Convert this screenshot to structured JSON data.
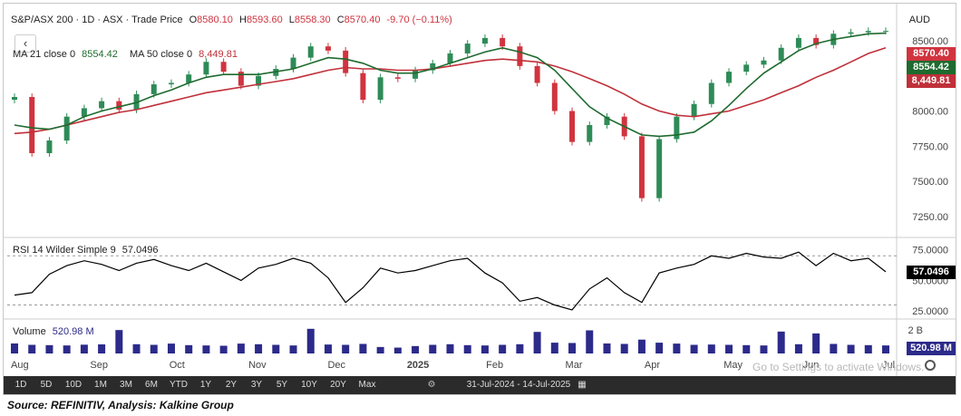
{
  "header": {
    "symbol": "S&P/ASX 200 · 1D · ASX · Trade Price",
    "o_label": "O",
    "o_value": "8580.10",
    "h_label": "H",
    "h_value": "8593.60",
    "l_label": "L",
    "l_value": "8558.30",
    "c_label": "C",
    "c_value": "8570.40",
    "change": "-9.70 (−0.11%)",
    "currency": "AUD",
    "back_icon": "chevron-left-icon"
  },
  "ma_legend": {
    "ma21_label": "MA 21 close 0",
    "ma21_value": "8554.42",
    "ma50_label": "MA 50 close 0",
    "ma50_value": "8,449.81"
  },
  "rsi_legend": {
    "label": "RSI 14 Wilder Simple 9",
    "value": "57.0496"
  },
  "volume_legend": {
    "label": "Volume",
    "value": "520.98 M"
  },
  "price_tags": {
    "close": "8570.40",
    "ma21": "8554.42",
    "ma50": "8,449.81"
  },
  "rsi_tag": "57.0496",
  "volume_tag": "520.98 M",
  "volume_axis_label": "2 B",
  "toolbar": {
    "ranges": [
      "1D",
      "5D",
      "10D",
      "1M",
      "3M",
      "6M",
      "YTD",
      "1Y",
      "2Y",
      "3Y",
      "5Y",
      "10Y",
      "20Y",
      "Max"
    ],
    "date_range": "31-Jul-2024 - 14-Jul-2025",
    "calendar_icon": "calendar-icon",
    "settings_icon": "gear-icon"
  },
  "watermark": "Go to Settings to activate Windows.",
  "source": "Source: REFINITIV, Analysis: Kalkine Group",
  "colors": {
    "up": "#2e8b57",
    "down": "#d0343f",
    "ma21": "#1e6b2f",
    "ma50": "#c0303a",
    "rsi": "#000000",
    "volume": "#2c2a8a",
    "toolbar": "#2b2b2b"
  },
  "chart_data": [
    {
      "type": "line",
      "title": "S&P/ASX 200",
      "x_ticks": [
        "Aug",
        "Sep",
        "Oct",
        "Nov",
        "Dec",
        "2025",
        "Feb",
        "Mar",
        "Apr",
        "May",
        "Jun",
        "Jul"
      ],
      "y_ticks": [
        7250,
        7500,
        7750,
        8000,
        8250,
        8500
      ],
      "y_tick_labels": [
        "7250.00",
        "7500.00",
        "7750.00",
        "8000.00",
        "8250.00",
        "8500.00"
      ],
      "ylim": [
        7100,
        8700
      ],
      "x_dates": [
        "2024-07-31",
        "2024-08-05",
        "2024-08-12",
        "2024-08-19",
        "2024-08-26",
        "2024-09-02",
        "2024-09-09",
        "2024-09-16",
        "2024-09-23",
        "2024-09-30",
        "2024-10-07",
        "2024-10-14",
        "2024-10-21",
        "2024-10-28",
        "2024-11-04",
        "2024-11-11",
        "2024-11-18",
        "2024-11-25",
        "2024-12-02",
        "2024-12-09",
        "2024-12-16",
        "2024-12-23",
        "2024-12-30",
        "2025-01-06",
        "2025-01-13",
        "2025-01-20",
        "2025-01-27",
        "2025-02-03",
        "2025-02-10",
        "2025-02-17",
        "2025-02-24",
        "2025-03-03",
        "2025-03-10",
        "2025-03-17",
        "2025-03-24",
        "2025-03-31",
        "2025-04-07",
        "2025-04-14",
        "2025-04-21",
        "2025-04-28",
        "2025-05-05",
        "2025-05-12",
        "2025-05-19",
        "2025-05-26",
        "2025-06-02",
        "2025-06-09",
        "2025-06-16",
        "2025-06-23",
        "2025-06-30",
        "2025-07-07",
        "2025-07-14"
      ],
      "series": [
        {
          "name": "Price",
          "values": [
            8100,
            7700,
            7790,
            7960,
            8020,
            8070,
            8010,
            8120,
            8190,
            8200,
            8260,
            8350,
            8280,
            8180,
            8250,
            8300,
            8380,
            8460,
            8430,
            8270,
            8080,
            8240,
            8230,
            8290,
            8340,
            8410,
            8480,
            8520,
            8460,
            8320,
            8200,
            8000,
            7780,
            7900,
            7960,
            7820,
            7380,
            7800,
            7960,
            8050,
            8200,
            8280,
            8330,
            8360,
            8450,
            8520,
            8470,
            8550,
            8560,
            8570,
            8570
          ]
        },
        {
          "name": "MA 21 close 0",
          "values": [
            7900,
            7880,
            7870,
            7900,
            7960,
            8000,
            8030,
            8060,
            8110,
            8150,
            8200,
            8240,
            8260,
            8260,
            8260,
            8280,
            8300,
            8340,
            8380,
            8370,
            8340,
            8290,
            8270,
            8270,
            8300,
            8340,
            8380,
            8420,
            8450,
            8420,
            8380,
            8290,
            8160,
            8030,
            7950,
            7890,
            7830,
            7820,
            7830,
            7850,
            7930,
            8040,
            8160,
            8270,
            8350,
            8430,
            8480,
            8510,
            8530,
            8550,
            8554
          ]
        },
        {
          "name": "MA 50 close 0",
          "values": [
            7840,
            7850,
            7870,
            7900,
            7930,
            7960,
            7990,
            8010,
            8040,
            8070,
            8100,
            8130,
            8150,
            8170,
            8190,
            8210,
            8230,
            8260,
            8290,
            8310,
            8300,
            8300,
            8290,
            8290,
            8300,
            8320,
            8340,
            8360,
            8370,
            8360,
            8350,
            8320,
            8280,
            8230,
            8180,
            8120,
            8050,
            8000,
            7970,
            7960,
            7980,
            8000,
            8040,
            8080,
            8130,
            8180,
            8240,
            8290,
            8350,
            8410,
            8450
          ]
        }
      ]
    },
    {
      "type": "line",
      "title": "RSI 14 Wilder Simple 9",
      "y_ticks": [
        25,
        50,
        75
      ],
      "y_tick_labels": [
        "25.0000",
        "50.0000",
        "75.0000"
      ],
      "ylim": [
        20,
        82
      ],
      "reference_lines": [
        70,
        30
      ],
      "series": [
        {
          "name": "RSI",
          "values": [
            38,
            40,
            55,
            62,
            66,
            63,
            58,
            64,
            67,
            62,
            58,
            64,
            57,
            50,
            60,
            63,
            68,
            64,
            52,
            32,
            44,
            60,
            56,
            58,
            62,
            66,
            68,
            56,
            48,
            33,
            36,
            30,
            26,
            43,
            52,
            40,
            32,
            56,
            60,
            63,
            70,
            68,
            72,
            69,
            68,
            73,
            62,
            72,
            66,
            68,
            57
          ]
        }
      ]
    },
    {
      "type": "bar",
      "title": "Volume",
      "ylim": [
        0,
        2000
      ],
      "y_ticks": [
        2000
      ],
      "y_tick_labels": [
        "2 B"
      ],
      "unit": "M",
      "values": [
        650,
        560,
        540,
        520,
        570,
        590,
        1520,
        600,
        560,
        640,
        540,
        520,
        500,
        640,
        600,
        560,
        520,
        1600,
        580,
        560,
        620,
        420,
        380,
        480,
        560,
        600,
        540,
        520,
        560,
        600,
        1400,
        700,
        680,
        1500,
        650,
        620,
        900,
        700,
        640,
        560,
        580,
        560,
        540,
        520,
        1420,
        600,
        1300,
        620,
        560,
        540,
        520.98
      ]
    }
  ]
}
